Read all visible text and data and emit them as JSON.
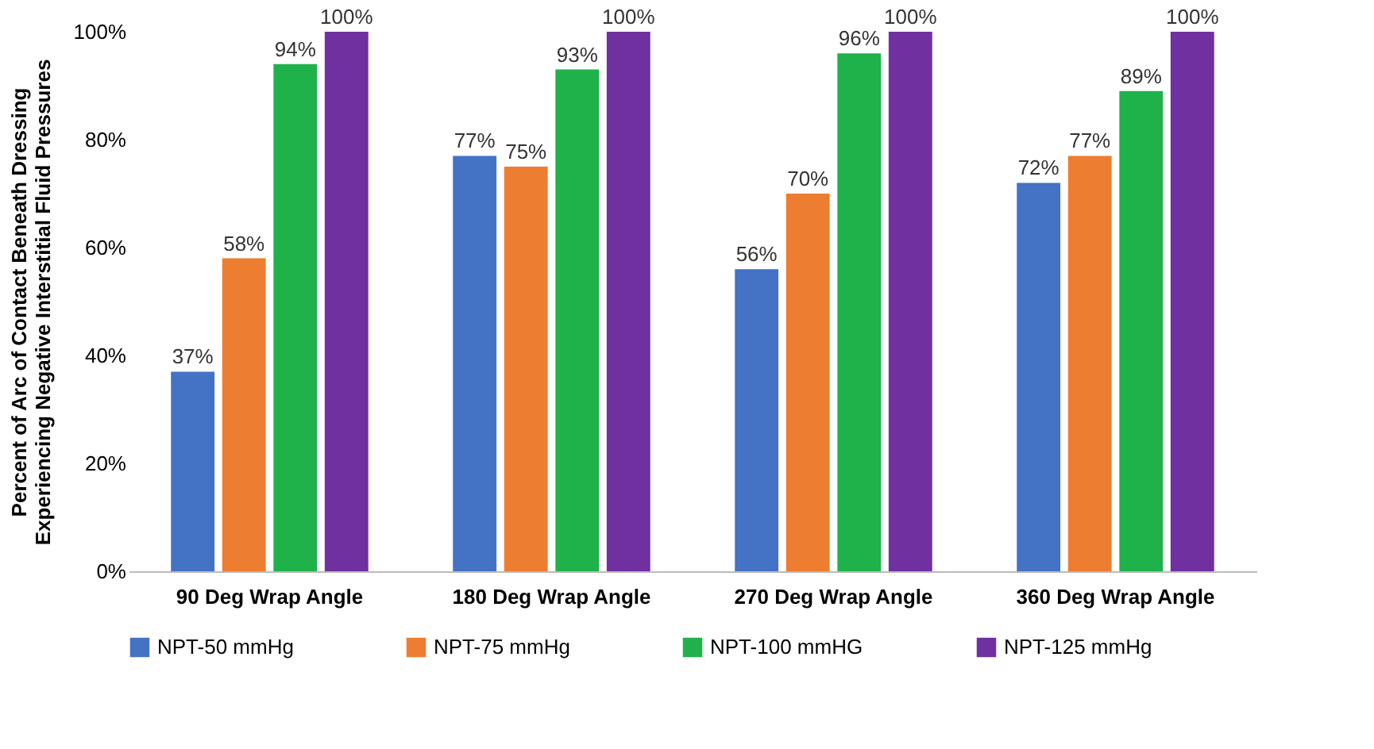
{
  "chart_data": {
    "type": "bar",
    "ylabel": "Percent of Arc of Contact Beneath Dressing\nExperiencing Negative Interstitial Fluid Pressures",
    "categories": [
      "90 Deg Wrap Angle",
      "180 Deg Wrap Angle",
      "270 Deg Wrap Angle",
      "360 Deg Wrap Angle"
    ],
    "series": [
      {
        "name": "NPT-50 mmHg",
        "color": "#4472c4",
        "values": [
          37,
          77,
          56,
          72
        ],
        "value_labels": [
          "37%",
          "77%",
          "56%",
          "72%"
        ]
      },
      {
        "name": "NPT-75 mmHg",
        "color": "#ed7d31",
        "values": [
          58,
          75,
          70,
          77
        ],
        "value_labels": [
          "58%",
          "75%",
          "70%",
          "77%"
        ]
      },
      {
        "name": "NPT-100 mmHG",
        "color": "#1fb24a",
        "values": [
          94,
          93,
          96,
          89
        ],
        "value_labels": [
          "94%",
          "93%",
          "96%",
          "89%"
        ]
      },
      {
        "name": "NPT-125 mmHg",
        "color": "#7030a0",
        "values": [
          100,
          100,
          100,
          100
        ],
        "value_labels": [
          "100%",
          "100%",
          "100%",
          "100%"
        ]
      }
    ],
    "ylim": [
      0,
      100
    ],
    "yticks": [
      {
        "value": 0,
        "label": "0%"
      },
      {
        "value": 20,
        "label": "20%"
      },
      {
        "value": 40,
        "label": "40%"
      },
      {
        "value": 60,
        "label": "60%"
      },
      {
        "value": 80,
        "label": "80%"
      },
      {
        "value": 100,
        "label": "100%"
      }
    ],
    "grid": false,
    "legend": "bottom"
  }
}
